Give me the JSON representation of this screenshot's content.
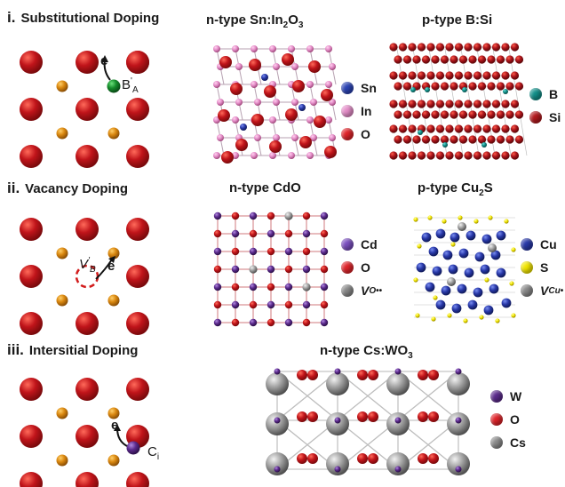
{
  "rows": [
    {
      "roman": "i.",
      "title": "Substitutional Doping",
      "schematic": {
        "electron": "e",
        "dopant_label": "B",
        "dopant_sub": "A",
        "dopant_sup": "'"
      },
      "panel_a": {
        "title_main": "n-type Sn:In",
        "title_sub": "2",
        "title_tail": "O",
        "title_sub2": "3",
        "legend": [
          {
            "label": "Sn",
            "color": "#2b43b5"
          },
          {
            "label": "In",
            "color": "#e58ec9"
          },
          {
            "label": "O",
            "color": "#e0242a"
          }
        ]
      },
      "panel_b": {
        "title_main": "p-type B:Si",
        "legend": [
          {
            "label": "B",
            "color": "#12908a"
          },
          {
            "label": "Si",
            "color": "#b3191d"
          }
        ]
      }
    },
    {
      "roman": "ii.",
      "title": "Vacancy Doping",
      "schematic": {
        "electron": "e",
        "vacancy_label": "V",
        "vacancy_sub": "B",
        "vacancy_sup": "'"
      },
      "panel_a": {
        "title_main": "n-type CdO",
        "legend": [
          {
            "label": "Cd",
            "color": "#7a4fbf"
          },
          {
            "label": "O",
            "color": "#e0242a"
          },
          {
            "label": "V",
            "sub": "O",
            "sup": "••",
            "color": "#8a8a8a"
          }
        ]
      },
      "panel_b": {
        "title_main": "p-type Cu",
        "title_sub": "2",
        "title_tail": "S",
        "legend": [
          {
            "label": "Cu",
            "color": "#2838a8"
          },
          {
            "label": "S",
            "color": "#f2e600"
          },
          {
            "label": "V",
            "sub": "Cu",
            "sup": "•",
            "color": "#8a8a8a"
          }
        ]
      }
    },
    {
      "roman": "iii.",
      "title": "Intersitial Doping",
      "schematic": {
        "electron": "e",
        "dopant_label": "C",
        "dopant_sub": "i"
      },
      "panel_a": {
        "title_main": "n-type Cs:WO",
        "title_sub": "3",
        "legend": [
          {
            "label": "W",
            "color": "#5b2a8c"
          },
          {
            "label": "O",
            "color": "#e0242a"
          },
          {
            "label": "Cs",
            "color": "#8c8c8c"
          }
        ]
      }
    }
  ]
}
